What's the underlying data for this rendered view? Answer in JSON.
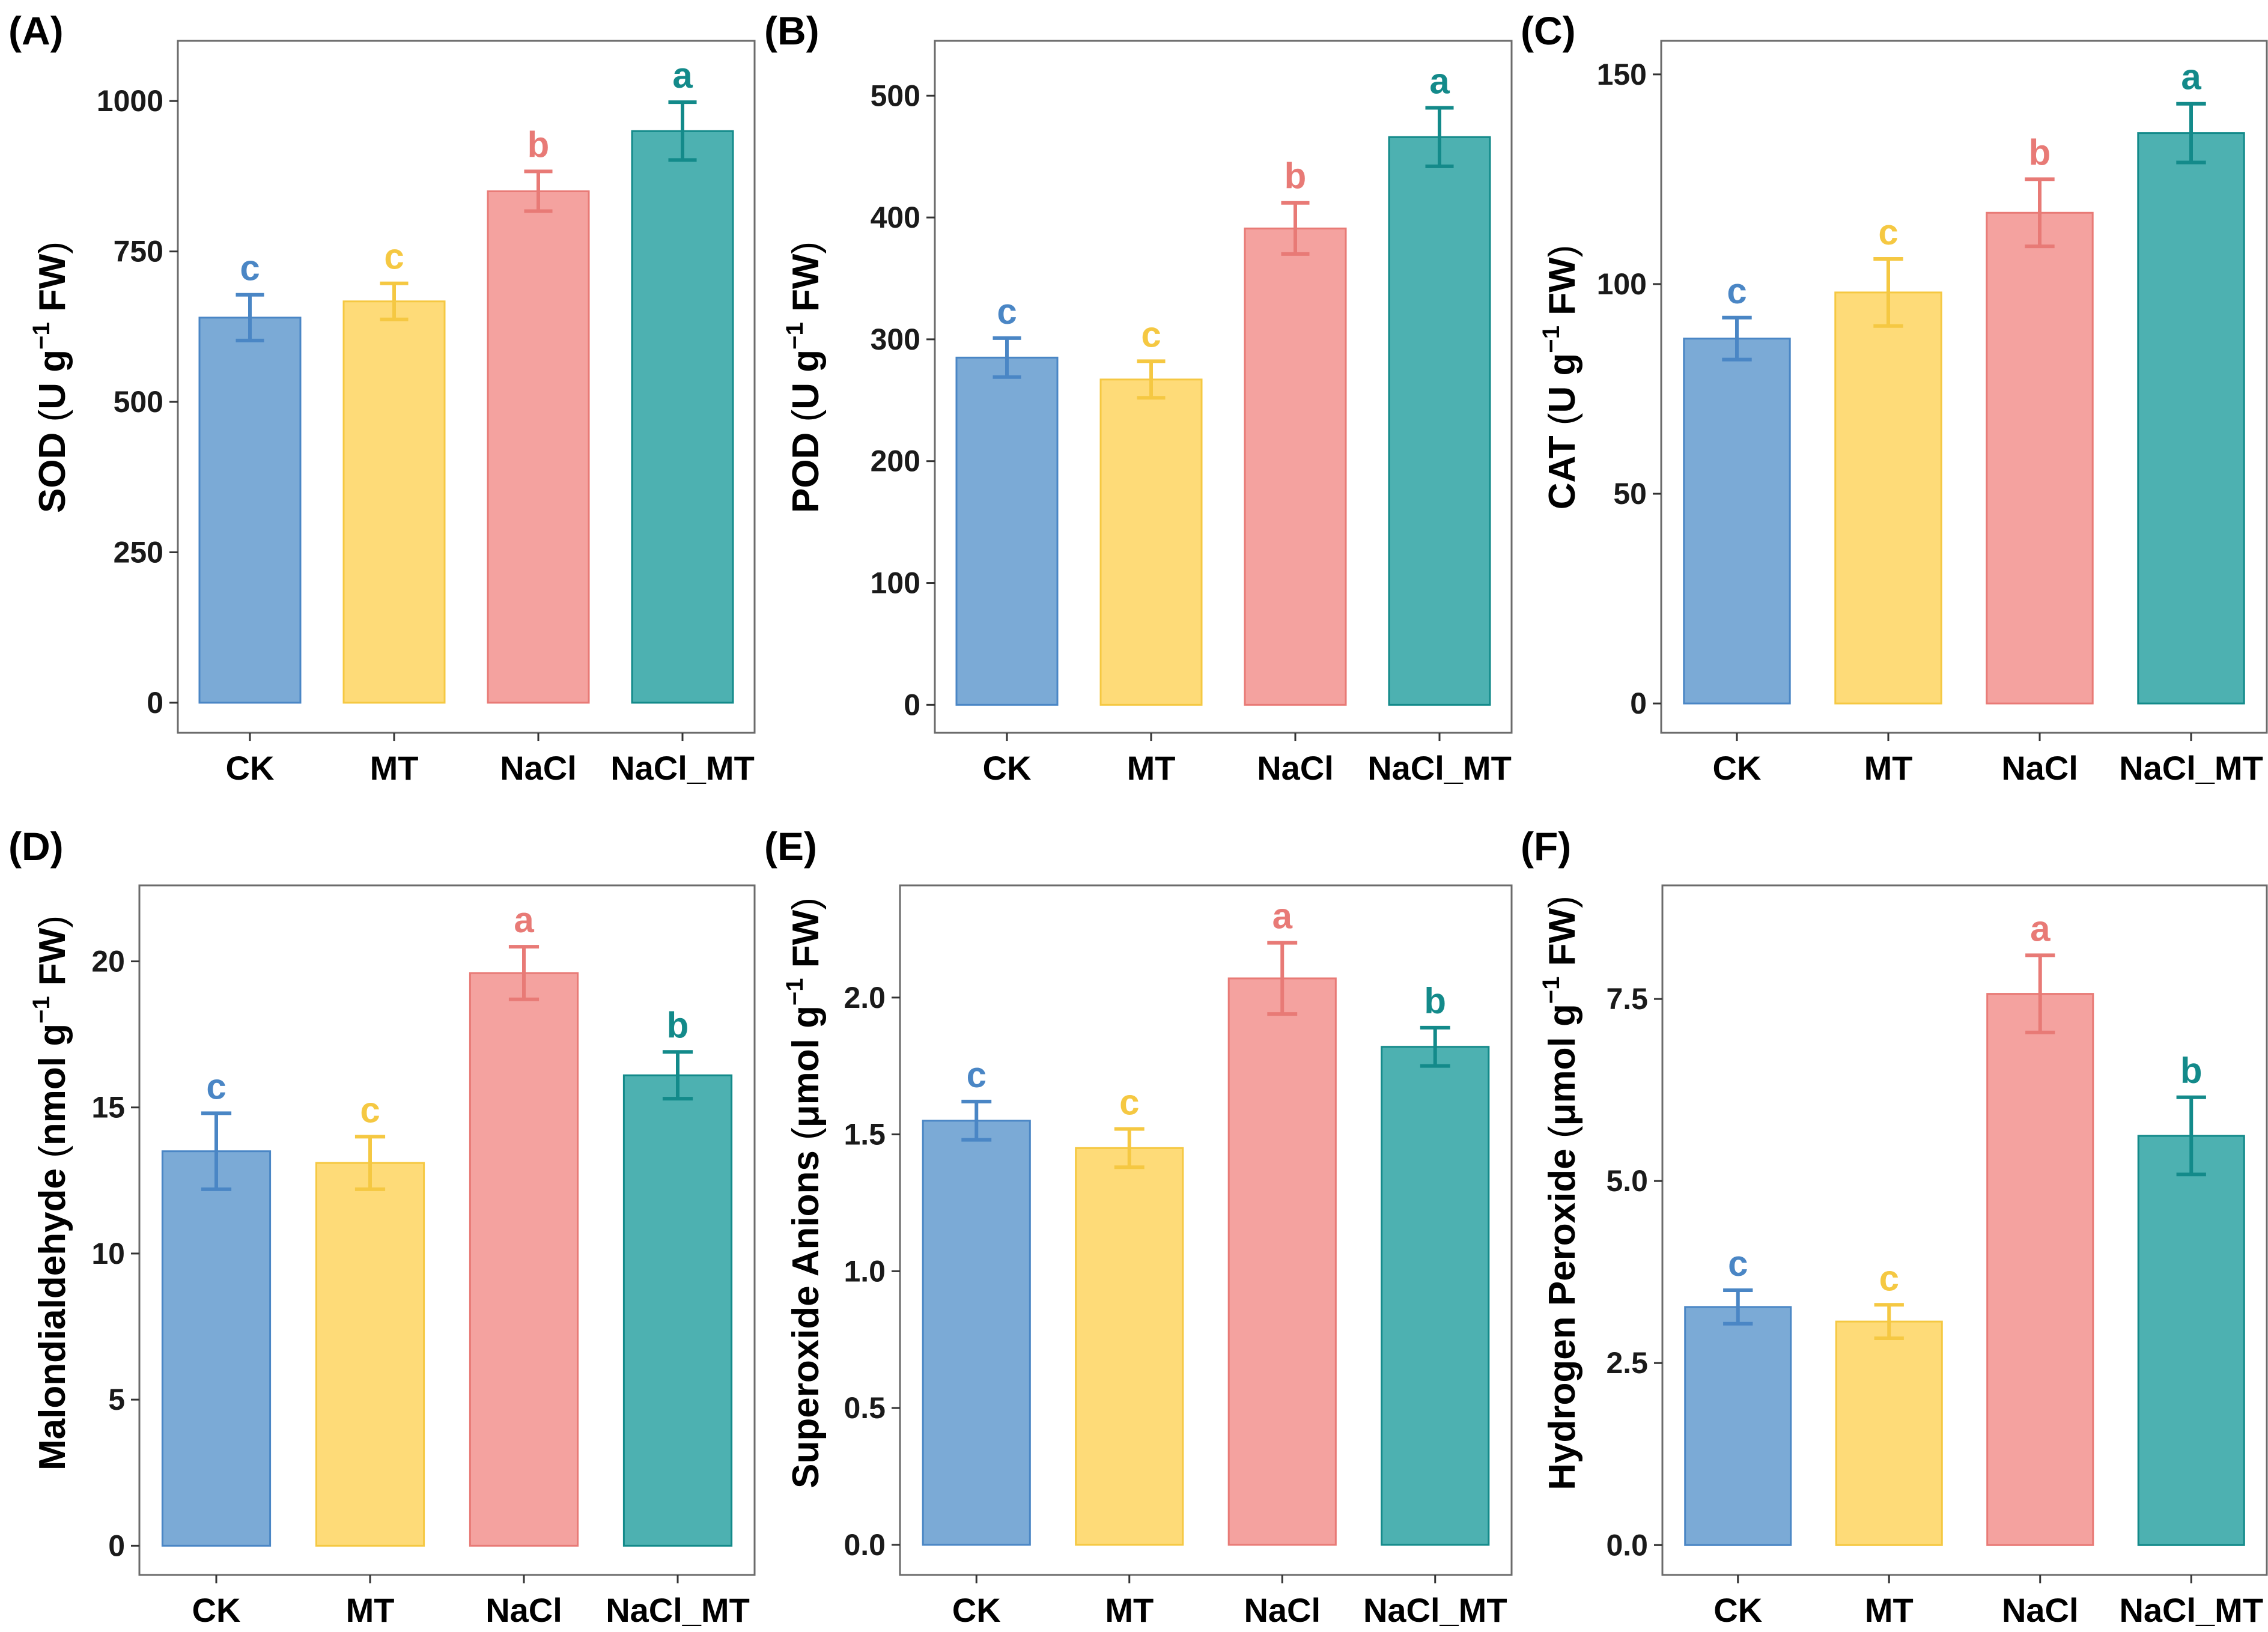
{
  "colors": {
    "CK": {
      "fill": "#7BAAD6",
      "stroke": "#4A86C5",
      "label": "#4A86C5"
    },
    "MT": {
      "fill": "#FEDB78",
      "stroke": "#F5C842",
      "label": "#F5C842"
    },
    "NaCl": {
      "fill": "#F4A29F",
      "stroke": "#E87A76",
      "label": "#E87A76"
    },
    "NaCl_MT": {
      "fill": "#4DB1B1",
      "stroke": "#138A8A",
      "label": "#138A8A"
    }
  },
  "chart_data": [
    {
      "panel": "(A)",
      "type": "bar",
      "ylabel_main": "SOD",
      "ylabel_unit_pre": "U g",
      "ylabel_sup": "−1",
      "ylabel_unit_post": " FW",
      "categories": [
        "CK",
        "MT",
        "NaCl",
        "NaCl_MT"
      ],
      "values": [
        640,
        667,
        850,
        950
      ],
      "errors": [
        38,
        30,
        33,
        48
      ],
      "significance": [
        "c",
        "c",
        "b",
        "a"
      ],
      "ylim": [
        -50,
        1100
      ],
      "yticks": [
        0,
        250,
        500,
        750,
        1000
      ],
      "ytick_labels": [
        "0",
        "250",
        "500",
        "750",
        "1000"
      ]
    },
    {
      "panel": "(B)",
      "type": "bar",
      "ylabel_main": "POD",
      "ylabel_unit_pre": "U g",
      "ylabel_sup": "−1",
      "ylabel_unit_post": " FW",
      "categories": [
        "CK",
        "MT",
        "NaCl",
        "NaCl_MT"
      ],
      "values": [
        285,
        267,
        391,
        466
      ],
      "errors": [
        16,
        15,
        21,
        24
      ],
      "significance": [
        "c",
        "c",
        "b",
        "a"
      ],
      "ylim": [
        -23,
        545
      ],
      "yticks": [
        0,
        100,
        200,
        300,
        400,
        500
      ],
      "ytick_labels": [
        "0",
        "100",
        "200",
        "300",
        "400",
        "500"
      ]
    },
    {
      "panel": "(C)",
      "type": "bar",
      "ylabel_main": "CAT",
      "ylabel_unit_pre": "U g",
      "ylabel_sup": "−1",
      "ylabel_unit_post": " FW",
      "categories": [
        "CK",
        "MT",
        "NaCl",
        "NaCl_MT"
      ],
      "values": [
        87,
        98,
        117,
        136
      ],
      "errors": [
        5,
        8,
        8,
        7
      ],
      "significance": [
        "c",
        "c",
        "b",
        "a"
      ],
      "ylim": [
        -7,
        158
      ],
      "yticks": [
        0,
        50,
        100,
        150
      ],
      "ytick_labels": [
        "0",
        "50",
        "100",
        "150"
      ]
    },
    {
      "panel": "(D)",
      "type": "bar",
      "ylabel_main": "Malondialdehyde",
      "ylabel_unit_pre": "nmol g",
      "ylabel_sup": "−1",
      "ylabel_unit_post": " FW",
      "categories": [
        "CK",
        "MT",
        "NaCl",
        "NaCl_MT"
      ],
      "values": [
        13.5,
        13.1,
        19.6,
        16.1
      ],
      "errors": [
        1.3,
        0.9,
        0.9,
        0.8
      ],
      "significance": [
        "c",
        "c",
        "a",
        "b"
      ],
      "ylim": [
        -1.0,
        22.6
      ],
      "yticks": [
        0,
        5,
        10,
        15,
        20
      ],
      "ytick_labels": [
        "0",
        "5",
        "10",
        "15",
        "20"
      ]
    },
    {
      "panel": "(E)",
      "type": "bar",
      "ylabel_main": "Superoxide Anions",
      "ylabel_unit_pre": "μmol g",
      "ylabel_sup": "−1",
      "ylabel_unit_post": " FW",
      "categories": [
        "CK",
        "MT",
        "NaCl",
        "NaCl_MT"
      ],
      "values": [
        1.55,
        1.45,
        2.07,
        1.82
      ],
      "errors": [
        0.07,
        0.07,
        0.13,
        0.07
      ],
      "significance": [
        "c",
        "c",
        "a",
        "b"
      ],
      "ylim": [
        -0.11,
        2.41
      ],
      "yticks": [
        0.0,
        0.5,
        1.0,
        1.5,
        2.0
      ],
      "ytick_labels": [
        "0.0",
        "0.5",
        "1.0",
        "1.5",
        "2.0"
      ]
    },
    {
      "panel": "(F)",
      "type": "bar",
      "ylabel_main": "Hydrogen Peroxide",
      "ylabel_unit_pre": "μmol g",
      "ylabel_sup": "−1",
      "ylabel_unit_post": " FW",
      "categories": [
        "CK",
        "MT",
        "NaCl",
        "NaCl_MT"
      ],
      "values": [
        3.27,
        3.07,
        7.57,
        5.62
      ],
      "errors": [
        0.23,
        0.23,
        0.53,
        0.53
      ],
      "significance": [
        "c",
        "c",
        "a",
        "b"
      ],
      "ylim": [
        -0.41,
        9.06
      ],
      "yticks": [
        0.0,
        2.5,
        5.0,
        7.5
      ],
      "ytick_labels": [
        "0.0",
        "2.5",
        "5.0",
        "7.5"
      ]
    }
  ]
}
